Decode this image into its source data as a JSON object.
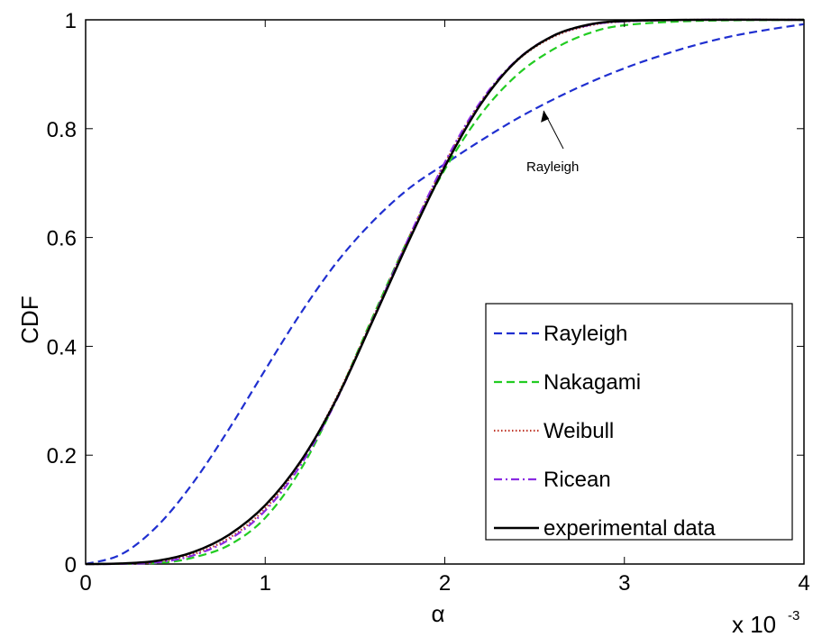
{
  "chart_data": {
    "type": "line",
    "xlabel": "α",
    "ylabel": "CDF",
    "x_multiplier_label": "x 10",
    "x_multiplier_exp": "-3",
    "xlim": [
      0,
      4
    ],
    "ylim": [
      0,
      1
    ],
    "xticks": [
      "0",
      "1",
      "2",
      "3",
      "4"
    ],
    "yticks": [
      "0",
      "0.2",
      "0.4",
      "0.6",
      "0.8",
      "1"
    ],
    "grid": false,
    "legend_position": "lower-right",
    "annotation": {
      "text": "Rayleigh",
      "target_x": 2.55,
      "target_y": 0.833
    },
    "series": [
      {
        "name": "Rayleigh",
        "color": "#1f2fd0",
        "style": "dashed",
        "x": [
          0,
          0.2,
          0.4,
          0.6,
          0.8,
          1.0,
          1.2,
          1.4,
          1.6,
          1.8,
          2.0,
          2.2,
          2.4,
          2.6,
          2.8,
          3.0,
          3.2,
          3.4,
          3.6,
          3.8,
          4.0
        ],
        "y": [
          0,
          0.018,
          0.07,
          0.15,
          0.249,
          0.357,
          0.462,
          0.555,
          0.63,
          0.69,
          0.735,
          0.778,
          0.818,
          0.853,
          0.884,
          0.911,
          0.934,
          0.954,
          0.97,
          0.982,
          0.992
        ]
      },
      {
        "name": "Nakagami",
        "color": "#22cc22",
        "style": "dashed",
        "x": [
          0,
          0.4,
          0.6,
          0.8,
          1.0,
          1.2,
          1.4,
          1.6,
          1.8,
          2.0,
          2.2,
          2.4,
          2.6,
          2.8,
          3.0,
          3.4,
          4.0
        ],
        "y": [
          0,
          0.002,
          0.012,
          0.035,
          0.085,
          0.175,
          0.305,
          0.455,
          0.6,
          0.725,
          0.826,
          0.898,
          0.945,
          0.975,
          0.99,
          0.998,
          1.0
        ]
      },
      {
        "name": "Weibull",
        "color": "#c0392b",
        "style": "dotted",
        "x": [
          0,
          0.2,
          0.4,
          0.6,
          0.8,
          1.0,
          1.2,
          1.4,
          1.6,
          1.8,
          2.0,
          2.2,
          2.4,
          2.6,
          2.8,
          3.0,
          3.4,
          4.0
        ],
        "y": [
          0,
          0.0005,
          0.004,
          0.018,
          0.048,
          0.102,
          0.188,
          0.308,
          0.452,
          0.6,
          0.736,
          0.848,
          0.924,
          0.968,
          0.989,
          0.997,
          1.0,
          1.0
        ]
      },
      {
        "name": "Ricean",
        "color": "#8a2be2",
        "style": "dashdot",
        "x": [
          0,
          0.2,
          0.4,
          0.6,
          0.8,
          1.0,
          1.2,
          1.4,
          1.6,
          1.8,
          2.0,
          2.2,
          2.4,
          2.6,
          2.8,
          3.0,
          3.4,
          4.0
        ],
        "y": [
          0,
          0.0004,
          0.003,
          0.016,
          0.045,
          0.098,
          0.183,
          0.303,
          0.45,
          0.6,
          0.738,
          0.85,
          0.926,
          0.97,
          0.99,
          0.997,
          1.0,
          1.0
        ]
      },
      {
        "name": "experimental data",
        "color": "#000000",
        "style": "solid",
        "x": [
          0,
          0.2,
          0.4,
          0.6,
          0.8,
          1.0,
          1.2,
          1.4,
          1.6,
          1.8,
          2.0,
          2.2,
          2.4,
          2.6,
          2.8,
          3.0,
          3.4,
          4.0
        ],
        "y": [
          0,
          0.001,
          0.006,
          0.022,
          0.054,
          0.108,
          0.19,
          0.305,
          0.448,
          0.594,
          0.73,
          0.845,
          0.925,
          0.97,
          0.991,
          0.998,
          1.0,
          1.0
        ]
      }
    ]
  }
}
